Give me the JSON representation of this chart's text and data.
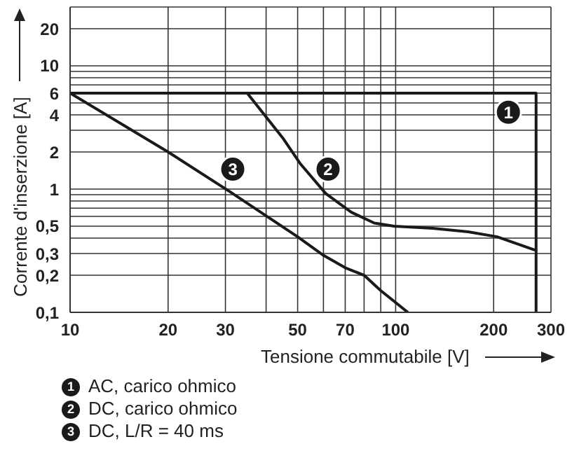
{
  "chart_data": {
    "type": "line",
    "xlabel": "Tensione commutabile [V]",
    "ylabel": "Corrente d'inserzione [A]",
    "log": "xy",
    "grid": true,
    "legend": "bottom",
    "marker": "none",
    "line_style": "solid",
    "xlim": [
      10,
      300
    ],
    "ylim": [
      0.1,
      30
    ],
    "xticks": [
      10,
      20,
      30,
      {
        "value": 40,
        "label": null
      },
      50,
      {
        "value": 60,
        "label": null
      },
      70,
      {
        "value": 80,
        "label": null
      },
      {
        "value": 90,
        "label": null
      },
      100,
      200,
      300
    ],
    "yticks": [
      {
        "value": 0.1,
        "label": "0,1"
      },
      {
        "value": 0.2,
        "label": "0,2"
      },
      {
        "value": 0.3,
        "label": "0,3"
      },
      {
        "value": 0.4,
        "label": null
      },
      {
        "value": 0.5,
        "label": "0,5"
      },
      {
        "value": 0.6,
        "label": null
      },
      {
        "value": 0.7,
        "label": null
      },
      {
        "value": 0.8,
        "label": null
      },
      {
        "value": 0.9,
        "label": null
      },
      1,
      2,
      {
        "value": 3,
        "label": null
      },
      4,
      {
        "value": 5,
        "label": null
      },
      6,
      {
        "value": 7,
        "label": null
      },
      {
        "value": 8,
        "label": null
      },
      {
        "value": 9,
        "label": null
      },
      10,
      20
    ],
    "series": [
      {
        "name": "AC, carico ohmico",
        "color": "#1a1a1a",
        "x": [
          10,
          270,
          270
        ],
        "values": [
          6,
          6,
          0.1
        ]
      },
      {
        "name": "DC, carico ohmico",
        "color": "#1a1a1a",
        "x": [
          35,
          45,
          51,
          61,
          73,
          86,
          99,
          130,
          167,
          205,
          268
        ],
        "values": [
          6,
          2.6,
          1.6,
          0.92,
          0.65,
          0.53,
          0.5,
          0.48,
          0.45,
          0.41,
          0.32
        ]
      },
      {
        "name": "DC, L/R = 40 ms",
        "color": "#1a1a1a",
        "x": [
          10,
          20,
          31,
          50,
          60,
          70,
          80,
          90,
          100,
          109
        ],
        "values": [
          6,
          2,
          0.95,
          0.41,
          0.29,
          0.23,
          0.2,
          0.15,
          0.12,
          0.1
        ]
      }
    ],
    "annotations": [
      {
        "text": "1",
        "x": 222,
        "y": 4.2
      },
      {
        "text": "2",
        "x": 62,
        "y": 1.45
      },
      {
        "text": "3",
        "x": 31.6,
        "y": 1.45
      }
    ]
  }
}
